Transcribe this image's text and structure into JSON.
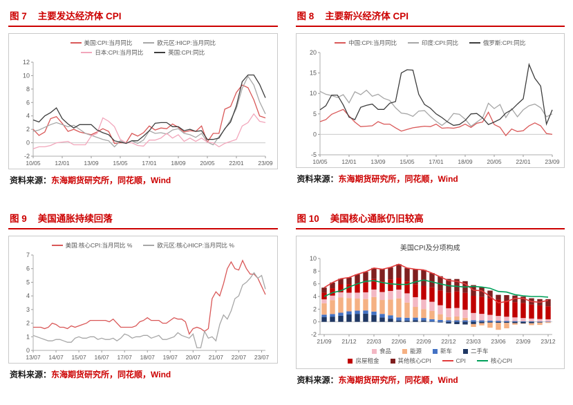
{
  "page": {
    "source_prefix": "资料来源：",
    "source_value": "东海期货研究所，同花顺，Wind"
  },
  "panels": [
    {
      "fig": "图 7",
      "title": "主要发达经济体 CPI"
    },
    {
      "fig": "图 8",
      "title": "主要新兴经济体 CPI"
    },
    {
      "fig": "图 9",
      "title": "美国通胀持续回落"
    },
    {
      "fig": "图 10",
      "title": "美国核心通胀仍旧较高"
    }
  ],
  "chart_data": [
    {
      "type": "line",
      "ylim": [
        -2,
        12
      ],
      "yticks": [
        -2,
        0,
        2,
        4,
        6,
        8,
        10,
        12
      ],
      "xtick_positions": [
        0,
        5,
        10,
        15,
        20,
        25,
        30,
        35,
        40
      ],
      "xtick_labels": [
        "10/05",
        "12/01",
        "13/09",
        "15/05",
        "17/01",
        "18/09",
        "20/05",
        "22/01",
        "23/09"
      ],
      "legend_wrap": 2,
      "legend_position": "top",
      "grid": false,
      "series": [
        {
          "name": "美国:CPI:当月同比",
          "color": "#d95757",
          "values": [
            2.0,
            1.1,
            1.6,
            3.6,
            3.9,
            2.9,
            1.7,
            2.0,
            1.6,
            1.4,
            1.2,
            1.6,
            2.1,
            1.7,
            -0.1,
            0.0,
            0.0,
            1.4,
            1.0,
            1.5,
            2.5,
            1.9,
            2.2,
            2.1,
            2.8,
            2.3,
            1.6,
            1.8,
            1.7,
            2.5,
            0.1,
            1.4,
            1.4,
            5.0,
            5.4,
            7.5,
            8.6,
            8.2,
            6.4,
            4.0,
            3.7
          ]
        },
        {
          "name": "欧元区:HICP:当月同比",
          "color": "#a6a6a6",
          "values": [
            1.7,
            1.9,
            2.3,
            2.7,
            3.0,
            2.7,
            2.4,
            2.6,
            2.0,
            1.4,
            1.1,
            0.8,
            0.5,
            0.3,
            -0.6,
            0.3,
            -0.1,
            0.3,
            -0.1,
            0.4,
            1.8,
            1.4,
            1.5,
            1.3,
            1.9,
            2.1,
            1.4,
            1.2,
            0.8,
            1.4,
            0.1,
            -0.3,
            0.9,
            2.0,
            3.4,
            5.1,
            8.1,
            9.9,
            8.6,
            6.1,
            4.3
          ]
        },
        {
          "name": "日本:CPI:当月同比",
          "color": "#f2a6bb",
          "values": [
            -0.9,
            -0.6,
            -0.6,
            -0.4,
            0.0,
            0.1,
            0.2,
            -0.3,
            -0.3,
            -0.3,
            1.0,
            1.4,
            3.7,
            3.2,
            2.4,
            0.5,
            0.0,
            0.0,
            -0.4,
            -0.5,
            0.4,
            0.4,
            0.7,
            1.4,
            0.7,
            1.2,
            0.2,
            0.7,
            0.2,
            0.7,
            0.1,
            0.0,
            -0.6,
            -0.1,
            0.2,
            0.5,
            2.5,
            3.0,
            4.3,
            3.2,
            3.0
          ]
        },
        {
          "name": "英国:CPI:同比",
          "color": "#3d3d3d",
          "values": [
            3.4,
            3.1,
            4.0,
            4.5,
            5.2,
            3.6,
            2.8,
            2.2,
            2.7,
            2.7,
            2.7,
            1.9,
            1.5,
            1.2,
            0.3,
            0.1,
            -0.1,
            0.3,
            0.3,
            1.0,
            1.8,
            2.9,
            3.0,
            3.0,
            2.4,
            2.4,
            1.8,
            2.0,
            1.7,
            1.8,
            0.5,
            0.5,
            0.7,
            2.1,
            3.1,
            5.5,
            9.1,
            10.1,
            10.1,
            8.7,
            6.7
          ]
        }
      ]
    },
    {
      "type": "line",
      "ylim": [
        -5,
        20
      ],
      "yticks": [
        -5,
        0,
        5,
        10,
        15,
        20
      ],
      "xtick_positions": [
        0,
        5,
        10,
        15,
        20,
        25,
        30,
        35,
        40
      ],
      "xtick_labels": [
        "10/05",
        "12/01",
        "13/09",
        "15/05",
        "17/01",
        "18/09",
        "20/05",
        "22/01",
        "23/09"
      ],
      "legend_wrap": 3,
      "legend_position": "top",
      "grid": false,
      "series": [
        {
          "name": "中国:CPI:当月同比",
          "color": "#d95757",
          "values": [
            3.1,
            3.6,
            4.9,
            5.5,
            6.1,
            4.5,
            3.0,
            1.9,
            2.0,
            2.1,
            3.1,
            2.5,
            2.5,
            1.6,
            0.8,
            1.2,
            1.6,
            1.8,
            2.0,
            1.9,
            2.5,
            1.5,
            1.6,
            1.5,
            1.8,
            2.5,
            1.7,
            2.7,
            3.0,
            5.4,
            2.4,
            1.7,
            -0.3,
            1.3,
            0.7,
            0.9,
            2.1,
            2.8,
            2.1,
            0.2,
            0.0
          ]
        },
        {
          "name": "印度:CPI:同比",
          "color": "#a6a6a6",
          "values": [
            10.5,
            9.8,
            9.5,
            9.0,
            9.7,
            7.7,
            10.4,
            9.7,
            10.8,
            9.3,
            9.8,
            8.8,
            8.3,
            6.5,
            5.2,
            5.0,
            4.4,
            5.7,
            5.8,
            4.4,
            3.2,
            2.2,
            3.3,
            5.1,
            4.9,
            3.7,
            2.0,
            3.0,
            4.0,
            7.6,
            6.3,
            7.3,
            4.1,
            6.3,
            4.3,
            6.0,
            7.0,
            7.4,
            6.5,
            4.3,
            5.0
          ]
        },
        {
          "name": "俄罗斯:CPI:同比",
          "color": "#3d3d3d",
          "values": [
            6.0,
            7.0,
            9.6,
            9.6,
            7.2,
            4.2,
            3.6,
            6.6,
            7.1,
            7.4,
            6.1,
            6.1,
            7.6,
            8.0,
            15.0,
            15.8,
            15.7,
            9.8,
            7.3,
            6.4,
            5.0,
            4.1,
            3.0,
            2.2,
            2.4,
            3.4,
            5.0,
            5.1,
            4.0,
            2.4,
            3.0,
            3.7,
            5.2,
            6.0,
            7.4,
            8.7,
            17.1,
            13.7,
            11.8,
            2.5,
            6.0
          ]
        }
      ]
    },
    {
      "type": "line",
      "ylim": [
        0,
        7
      ],
      "yticks": [
        0,
        1,
        2,
        3,
        4,
        5,
        6,
        7
      ],
      "xtick_positions": [
        0,
        6,
        12,
        18,
        24,
        30,
        36,
        42,
        48,
        54,
        60
      ],
      "xtick_labels": [
        "13/07",
        "14/07",
        "15/07",
        "16/07",
        "17/07",
        "18/07",
        "19/07",
        "20/07",
        "21/07",
        "22/07",
        "23/07"
      ],
      "legend_wrap": 2,
      "legend_position": "top",
      "grid": false,
      "series": [
        {
          "name": "美国:核心CPI:当月同比 %",
          "color": "#d95757",
          "values": [
            1.7,
            1.7,
            1.7,
            1.6,
            1.7,
            2.0,
            1.9,
            1.7,
            1.7,
            1.6,
            1.8,
            1.7,
            1.8,
            1.9,
            2.0,
            2.2,
            2.2,
            2.2,
            2.2,
            2.2,
            2.1,
            2.3,
            2.0,
            1.7,
            1.7,
            1.7,
            1.7,
            1.8,
            2.1,
            2.2,
            2.4,
            2.2,
            2.2,
            2.2,
            2.0,
            2.0,
            2.2,
            2.4,
            2.3,
            2.3,
            2.1,
            1.2,
            1.6,
            1.7,
            1.6,
            1.4,
            1.6,
            3.8,
            4.3,
            4.0,
            4.9,
            6.0,
            6.5,
            6.0,
            5.9,
            6.6,
            6.0,
            5.6,
            5.6,
            5.3,
            4.7,
            4.1
          ]
        },
        {
          "name": "欧元区:核心HICP:当月同比 %",
          "color": "#a6a6a6",
          "values": [
            1.1,
            1.0,
            0.9,
            0.8,
            0.7,
            0.7,
            0.8,
            0.8,
            0.7,
            0.6,
            0.6,
            0.9,
            1.0,
            0.9,
            0.9,
            1.0,
            1.0,
            0.8,
            0.9,
            0.8,
            0.8,
            0.9,
            0.7,
            0.9,
            1.2,
            1.1,
            0.9,
            1.0,
            1.0,
            1.1,
            1.1,
            0.9,
            1.0,
            1.1,
            0.8,
            0.8,
            0.9,
            1.0,
            1.3,
            1.1,
            1.0,
            0.9,
            1.2,
            0.2,
            0.2,
            1.4,
            0.9,
            1.0,
            0.7,
            1.9,
            2.6,
            2.3,
            2.9,
            3.8,
            4.0,
            4.8,
            5.0,
            5.3,
            5.7,
            5.3,
            5.5,
            4.5
          ]
        }
      ]
    },
    {
      "type": "stacked_bar",
      "inner_title": "美国CPI及分项构成",
      "ylim": [
        -2,
        10
      ],
      "yticks": [
        -2,
        0,
        2,
        4,
        6,
        8,
        10
      ],
      "categories": [
        "21/09",
        "21/10",
        "21/11",
        "21/12",
        "22/01",
        "22/02",
        "22/03",
        "22/04",
        "22/05",
        "22/06",
        "22/07",
        "22/08",
        "22/09",
        "22/10",
        "22/11",
        "22/12",
        "23/01",
        "23/02",
        "23/03",
        "23/04",
        "23/05",
        "23/06",
        "23/07",
        "23/08",
        "23/09",
        "23/10",
        "23/11",
        "23/12"
      ],
      "xtick_positions": [
        0,
        3,
        6,
        9,
        12,
        15,
        18,
        21,
        24,
        27
      ],
      "xtick_labels": [
        "21/09",
        "21/12",
        "22/03",
        "22/06",
        "22/09",
        "22/12",
        "23/03",
        "23/06",
        "23/09",
        "23/12"
      ],
      "legend_wrap": 4,
      "legend_position": "bottom",
      "grid": false,
      "stack_order": [
        3,
        2,
        1,
        0,
        4,
        5
      ],
      "bar_series": [
        {
          "name": "食品",
          "color": "#f3b8c4",
          "values": [
            0.62,
            0.71,
            0.82,
            0.84,
            0.94,
            1.06,
            1.18,
            1.26,
            1.35,
            1.39,
            1.46,
            1.53,
            1.5,
            1.46,
            1.42,
            1.39,
            1.35,
            1.27,
            1.14,
            1.03,
            0.9,
            0.76,
            0.66,
            0.58,
            0.5,
            0.44,
            0.39,
            0.36
          ]
        },
        {
          "name": "能源",
          "color": "#f5b183",
          "values": [
            1.8,
            2.2,
            2.4,
            2.1,
            1.9,
            1.8,
            2.3,
            2.2,
            2.5,
            3.0,
            2.4,
            1.7,
            1.4,
            1.3,
            0.9,
            0.5,
            0.6,
            0.4,
            -0.45,
            -0.36,
            -0.8,
            -1.1,
            -0.85,
            -0.25,
            -0.03,
            -0.3,
            -0.37,
            -0.14
          ]
        },
        {
          "name": "新车",
          "color": "#4472c4",
          "values": [
            0.37,
            0.41,
            0.47,
            0.5,
            0.51,
            0.52,
            0.53,
            0.55,
            0.53,
            0.48,
            0.44,
            0.42,
            0.39,
            0.35,
            0.3,
            0.25,
            0.24,
            0.24,
            0.26,
            0.23,
            0.2,
            0.17,
            0.15,
            0.12,
            0.1,
            0.08,
            0.05,
            0.04
          ]
        },
        {
          "name": "二手车",
          "color": "#203864",
          "values": [
            0.76,
            0.82,
            0.97,
            1.16,
            1.26,
            1.28,
            1.09,
            0.7,
            0.5,
            0.22,
            0.2,
            0.24,
            0.22,
            0.06,
            -0.1,
            -0.27,
            -0.36,
            -0.42,
            -0.35,
            -0.2,
            -0.13,
            -0.16,
            -0.17,
            -0.2,
            -0.25,
            -0.22,
            -0.12,
            -0.04
          ]
        },
        {
          "name": "房屋租金",
          "color": "#c00000",
          "values": [
            1.06,
            1.16,
            1.25,
            1.35,
            1.45,
            1.55,
            1.65,
            1.68,
            1.82,
            1.85,
            1.88,
            2.05,
            2.18,
            2.28,
            2.34,
            2.48,
            2.61,
            2.67,
            2.71,
            2.67,
            2.64,
            2.57,
            2.54,
            2.41,
            2.38,
            2.21,
            2.15,
            2.05
          ]
        },
        {
          "name": "其他核心CPI",
          "color": "#7f1f1f",
          "values": [
            0.79,
            0.9,
            0.89,
            1.05,
            1.44,
            1.69,
            1.75,
            1.91,
            1.9,
            2.16,
            2.12,
            2.36,
            2.51,
            2.25,
            2.24,
            2.15,
            1.96,
            1.84,
            1.69,
            1.53,
            1.19,
            0.76,
            0.87,
            1.04,
            1.0,
            0.99,
            1.0,
            1.13
          ]
        }
      ],
      "line_series": [
        {
          "name": "CPI",
          "color": "#e23b3b",
          "values": [
            5.4,
            6.2,
            6.8,
            7.0,
            7.5,
            7.9,
            8.5,
            8.3,
            8.6,
            9.1,
            8.5,
            8.3,
            8.2,
            7.7,
            7.1,
            6.5,
            6.4,
            6.0,
            5.0,
            4.9,
            4.0,
            3.0,
            3.2,
            3.7,
            3.7,
            3.2,
            3.1,
            3.4
          ]
        },
        {
          "name": "核心CPI",
          "color": "#00a05a",
          "values": [
            4.0,
            4.6,
            4.9,
            5.5,
            6.0,
            6.4,
            6.5,
            6.2,
            6.0,
            5.9,
            5.9,
            6.3,
            6.6,
            6.3,
            6.0,
            5.7,
            5.6,
            5.5,
            5.6,
            5.5,
            5.3,
            4.8,
            4.7,
            4.3,
            4.1,
            4.0,
            4.0,
            3.9
          ]
        }
      ]
    }
  ]
}
